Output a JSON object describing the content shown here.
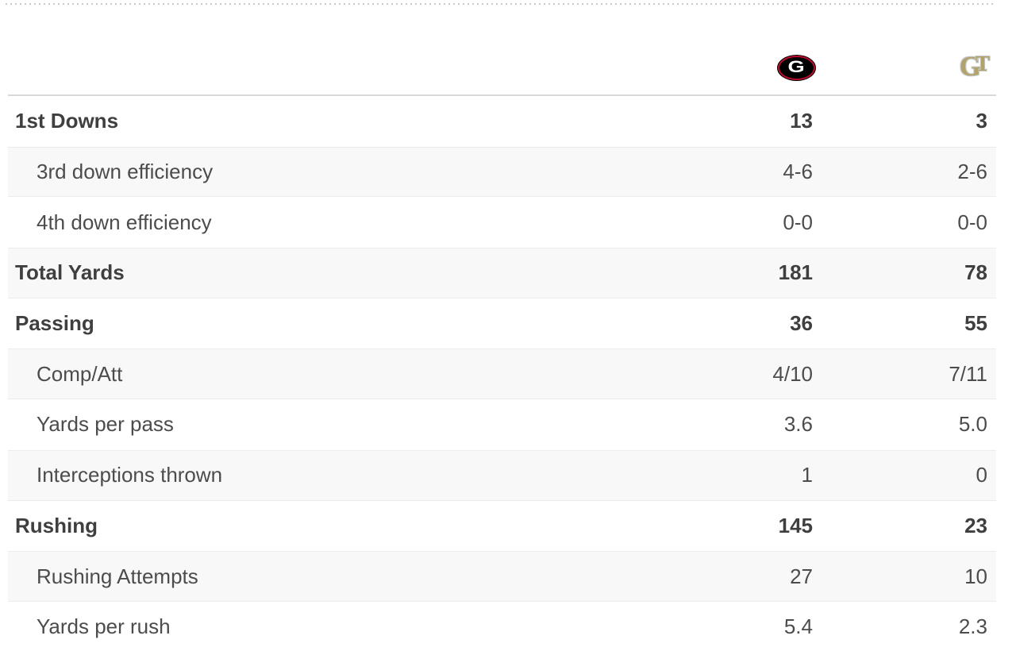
{
  "header": {
    "teams": [
      {
        "abbr": "G",
        "icon": "georgia-bulldogs-logo",
        "colors": {
          "oval": "#000000",
          "ring": "#ba0c2f",
          "letter": "#ffffff"
        }
      },
      {
        "abbr": "GT",
        "icon": "georgia-tech-logo",
        "colors": {
          "letters": "#b3a369",
          "outline": "#c3c6c8"
        }
      }
    ]
  },
  "stats": {
    "rows": [
      {
        "label": "1st Downs",
        "values": [
          "13",
          "3"
        ],
        "bold": true,
        "indent": false
      },
      {
        "label": "3rd down efficiency",
        "values": [
          "4-6",
          "2-6"
        ],
        "bold": false,
        "indent": true
      },
      {
        "label": "4th down efficiency",
        "values": [
          "0-0",
          "0-0"
        ],
        "bold": false,
        "indent": true
      },
      {
        "label": "Total Yards",
        "values": [
          "181",
          "78"
        ],
        "bold": true,
        "indent": false
      },
      {
        "label": "Passing",
        "values": [
          "36",
          "55"
        ],
        "bold": true,
        "indent": false
      },
      {
        "label": "Comp/Att",
        "values": [
          "4/10",
          "7/11"
        ],
        "bold": false,
        "indent": true
      },
      {
        "label": "Yards per pass",
        "values": [
          "3.6",
          "5.0"
        ],
        "bold": false,
        "indent": true
      },
      {
        "label": "Interceptions thrown",
        "values": [
          "1",
          "0"
        ],
        "bold": false,
        "indent": true
      },
      {
        "label": "Rushing",
        "values": [
          "145",
          "23"
        ],
        "bold": true,
        "indent": false
      },
      {
        "label": "Rushing Attempts",
        "values": [
          "27",
          "10"
        ],
        "bold": false,
        "indent": true
      },
      {
        "label": "Yards per rush",
        "values": [
          "5.4",
          "2.3"
        ],
        "bold": false,
        "indent": true
      }
    ]
  }
}
